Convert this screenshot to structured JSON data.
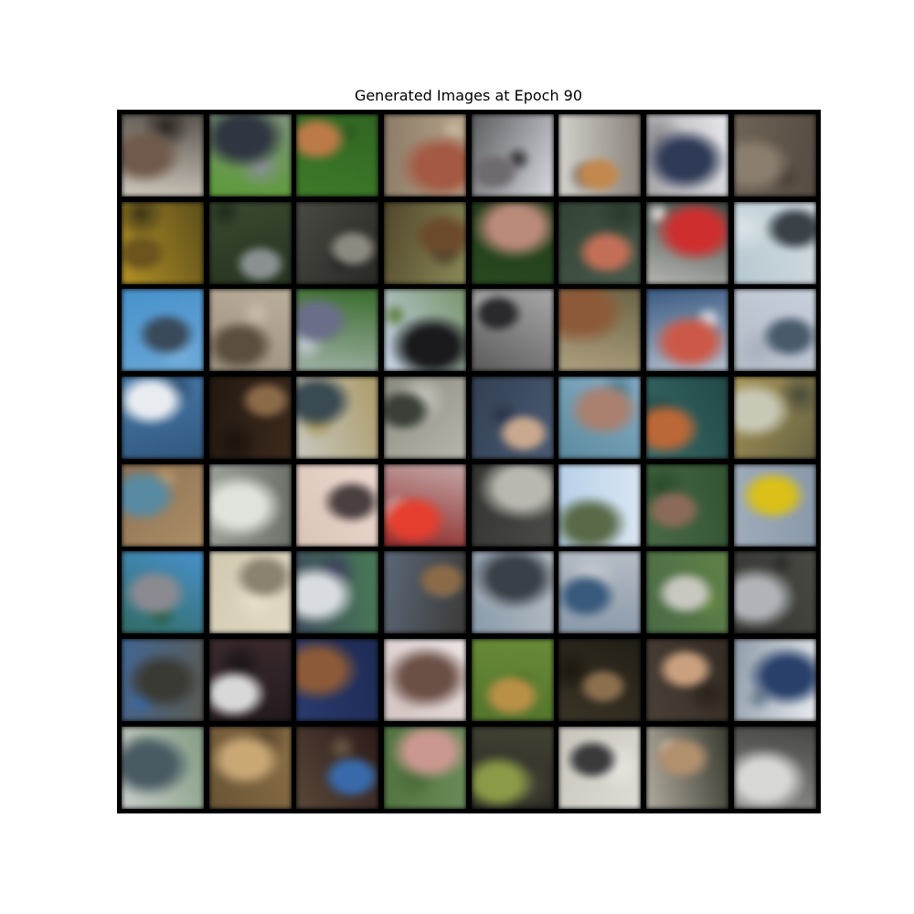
{
  "figure": {
    "title": "Generated Images at Epoch 90"
  },
  "grid": {
    "rows": 8,
    "cols": 8,
    "tiles": [
      {
        "bg": "#cfc8bd",
        "blob": "#6e5a4c",
        "accent": "#2a2420"
      },
      {
        "bg": "#5f9a3c",
        "blob": "#2f3640",
        "accent": "#8a8f95"
      },
      {
        "bg": "#3f7a2c",
        "blob": "#b87a4a",
        "accent": "#2e5a22"
      },
      {
        "bg": "#8a7a66",
        "blob": "#a05a45",
        "accent": "#c9b8a0"
      },
      {
        "bg": "#d9dbe0",
        "blob": "#6e6a70",
        "accent": "#2a2a2e"
      },
      {
        "bg": "#d4d2cc",
        "blob": "#c08850",
        "accent": "#6a625a"
      },
      {
        "bg": "#e8e8ec",
        "blob": "#2f3a55",
        "accent": "#8a8a8e"
      },
      {
        "bg": "#6e6458",
        "blob": "#8a7e70",
        "accent": "#4a4038"
      },
      {
        "bg": "#b0902a",
        "blob": "#6a5420",
        "accent": "#3a3418"
      },
      {
        "bg": "#3a4a32",
        "blob": "#8a9090",
        "accent": "#1e2a1a"
      },
      {
        "bg": "#4a4a44",
        "blob": "#8a8a80",
        "accent": "#1a1a18"
      },
      {
        "bg": "#8a8a5a",
        "blob": "#6a4a2e",
        "accent": "#3a2a1a"
      },
      {
        "bg": "#2a4a22",
        "blob": "#b88a7a",
        "accent": "#1a3014"
      },
      {
        "bg": "#4a5a4c",
        "blob": "#c0705a",
        "accent": "#2a3a2c"
      },
      {
        "bg": "#3a4a44",
        "blob": "#c83030",
        "accent": "#e8e0dc"
      },
      {
        "bg": "#b8c8d0",
        "blob": "#3a4248",
        "accent": "#dce4e8"
      },
      {
        "bg": "#4a90c8",
        "blob": "#3a4a5a",
        "accent": "#7ab0d8"
      },
      {
        "bg": "#9a8e7e",
        "blob": "#5a4e40",
        "accent": "#c8bcaa"
      },
      {
        "bg": "#3a6a2e",
        "blob": "#6a6e88",
        "accent": "#c8ccd4"
      },
      {
        "bg": "#c8d4e8",
        "blob": "#1a1a1c",
        "accent": "#5a7a3a"
      },
      {
        "bg": "#5a5a5a",
        "blob": "#2a2a2c",
        "accent": "#c8c8c8"
      },
      {
        "bg": "#6a6448",
        "blob": "#8a5a3a",
        "accent": "#c8b898"
      },
      {
        "bg": "#3a5a80",
        "blob": "#c85a4a",
        "accent": "#e8e8ec"
      },
      {
        "bg": "#c8d0dc",
        "blob": "#4a5a6a",
        "accent": "#a8b0bc"
      },
      {
        "bg": "#4a7aa8",
        "blob": "#e8ecf0",
        "accent": "#2a4a6a"
      },
      {
        "bg": "#3a2a1e",
        "blob": "#8a6a4a",
        "accent": "#1a120c"
      },
      {
        "bg": "#c8c8c0",
        "blob": "#3a4a52",
        "accent": "#a08a4a"
      },
      {
        "bg": "#8a8a7e",
        "blob": "#3a4038",
        "accent": "#c8c8c0"
      },
      {
        "bg": "#4a5a70",
        "blob": "#c8a890",
        "accent": "#2a3448"
      },
      {
        "bg": "#8ab0c8",
        "blob": "#a88070",
        "accent": "#4a7a8a"
      },
      {
        "bg": "#3a6a68",
        "blob": "#b8683a",
        "accent": "#1a3a38"
      },
      {
        "bg": "#a8985a",
        "blob": "#c8c8b8",
        "accent": "#4a4a3a"
      },
      {
        "bg": "#8a7054",
        "blob": "#5a8aa0",
        "accent": "#b89a70"
      },
      {
        "bg": "#9aa098",
        "blob": "#e0e2dc",
        "accent": "#5a6058"
      },
      {
        "bg": "#ecd8d0",
        "blob": "#4a4040",
        "accent": "#d0bcb0"
      },
      {
        "bg": "#8a2a2a",
        "blob": "#e04030",
        "accent": "#d8d8d8"
      },
      {
        "bg": "#4a4a48",
        "blob": "#b8b8b0",
        "accent": "#2a2a28"
      },
      {
        "bg": "#b8d0e8",
        "blob": "#5a6a4a",
        "accent": "#e8eef4"
      },
      {
        "bg": "#4a6a48",
        "blob": "#8a6a5a",
        "accent": "#2a4a2a"
      },
      {
        "bg": "#8a98a8",
        "blob": "#d8c020",
        "accent": "#a8b4c0"
      },
      {
        "bg": "#4a90c8",
        "blob": "#8a8a90",
        "accent": "#2a5a3a"
      },
      {
        "bg": "#d0c8b0",
        "blob": "#8a8270",
        "accent": "#e8e0cc"
      },
      {
        "bg": "#4a7a58",
        "blob": "#d8dce0",
        "accent": "#3a3a5a"
      },
      {
        "bg": "#3a3a38",
        "blob": "#8a6a4a",
        "accent": "#6a7a90"
      },
      {
        "bg": "#8a9aa8",
        "blob": "#3a4048",
        "accent": "#c8ccd0"
      },
      {
        "bg": "#8a98a8",
        "blob": "#3a5a7a",
        "accent": "#c8ccd0"
      },
      {
        "bg": "#4a6a48",
        "blob": "#c8c8c0",
        "accent": "#6a8a4a"
      },
      {
        "bg": "#4a4a44",
        "blob": "#b0b4b8",
        "accent": "#2a2a28"
      },
      {
        "bg": "#5a5a52",
        "blob": "#3a3a34",
        "accent": "#3a6aa8"
      },
      {
        "bg": "#3a2a2e",
        "blob": "#d8d8d8",
        "accent": "#1a1418"
      },
      {
        "bg": "#2a3a6a",
        "blob": "#8a5a3a",
        "accent": "#1a2448"
      },
      {
        "bg": "#ece4e4",
        "blob": "#6a5048",
        "accent": "#c8b8b4"
      },
      {
        "bg": "#6a8a3a",
        "blob": "#b8904a",
        "accent": "#4a6a2a"
      },
      {
        "bg": "#3a3428",
        "blob": "#8a7050",
        "accent": "#1a160e"
      },
      {
        "bg": "#4a4038",
        "blob": "#c8a080",
        "accent": "#2a221c"
      },
      {
        "bg": "#e8ecf0",
        "blob": "#2a4068",
        "accent": "#6a7a8a"
      },
      {
        "bg": "#c8ccc8",
        "blob": "#4a5a62",
        "accent": "#6a8a6a"
      },
      {
        "bg": "#8a7048",
        "blob": "#c8a878",
        "accent": "#5a4830"
      },
      {
        "bg": "#2a1a18",
        "blob": "#3a6aa8",
        "accent": "#6a5a48"
      },
      {
        "bg": "#6a8a5a",
        "blob": "#c89890",
        "accent": "#4a6a3a"
      },
      {
        "bg": "#2a2a24",
        "blob": "#8a9a4a",
        "accent": "#4a4a3a"
      },
      {
        "bg": "#c8c4bc",
        "blob": "#3a3a3c",
        "accent": "#e8e6e0"
      },
      {
        "bg": "#3a3a30",
        "blob": "#b09070",
        "accent": "#e0d8cc"
      },
      {
        "bg": "#8a8a88",
        "blob": "#d8d8d4",
        "accent": "#2a2a28"
      }
    ]
  }
}
